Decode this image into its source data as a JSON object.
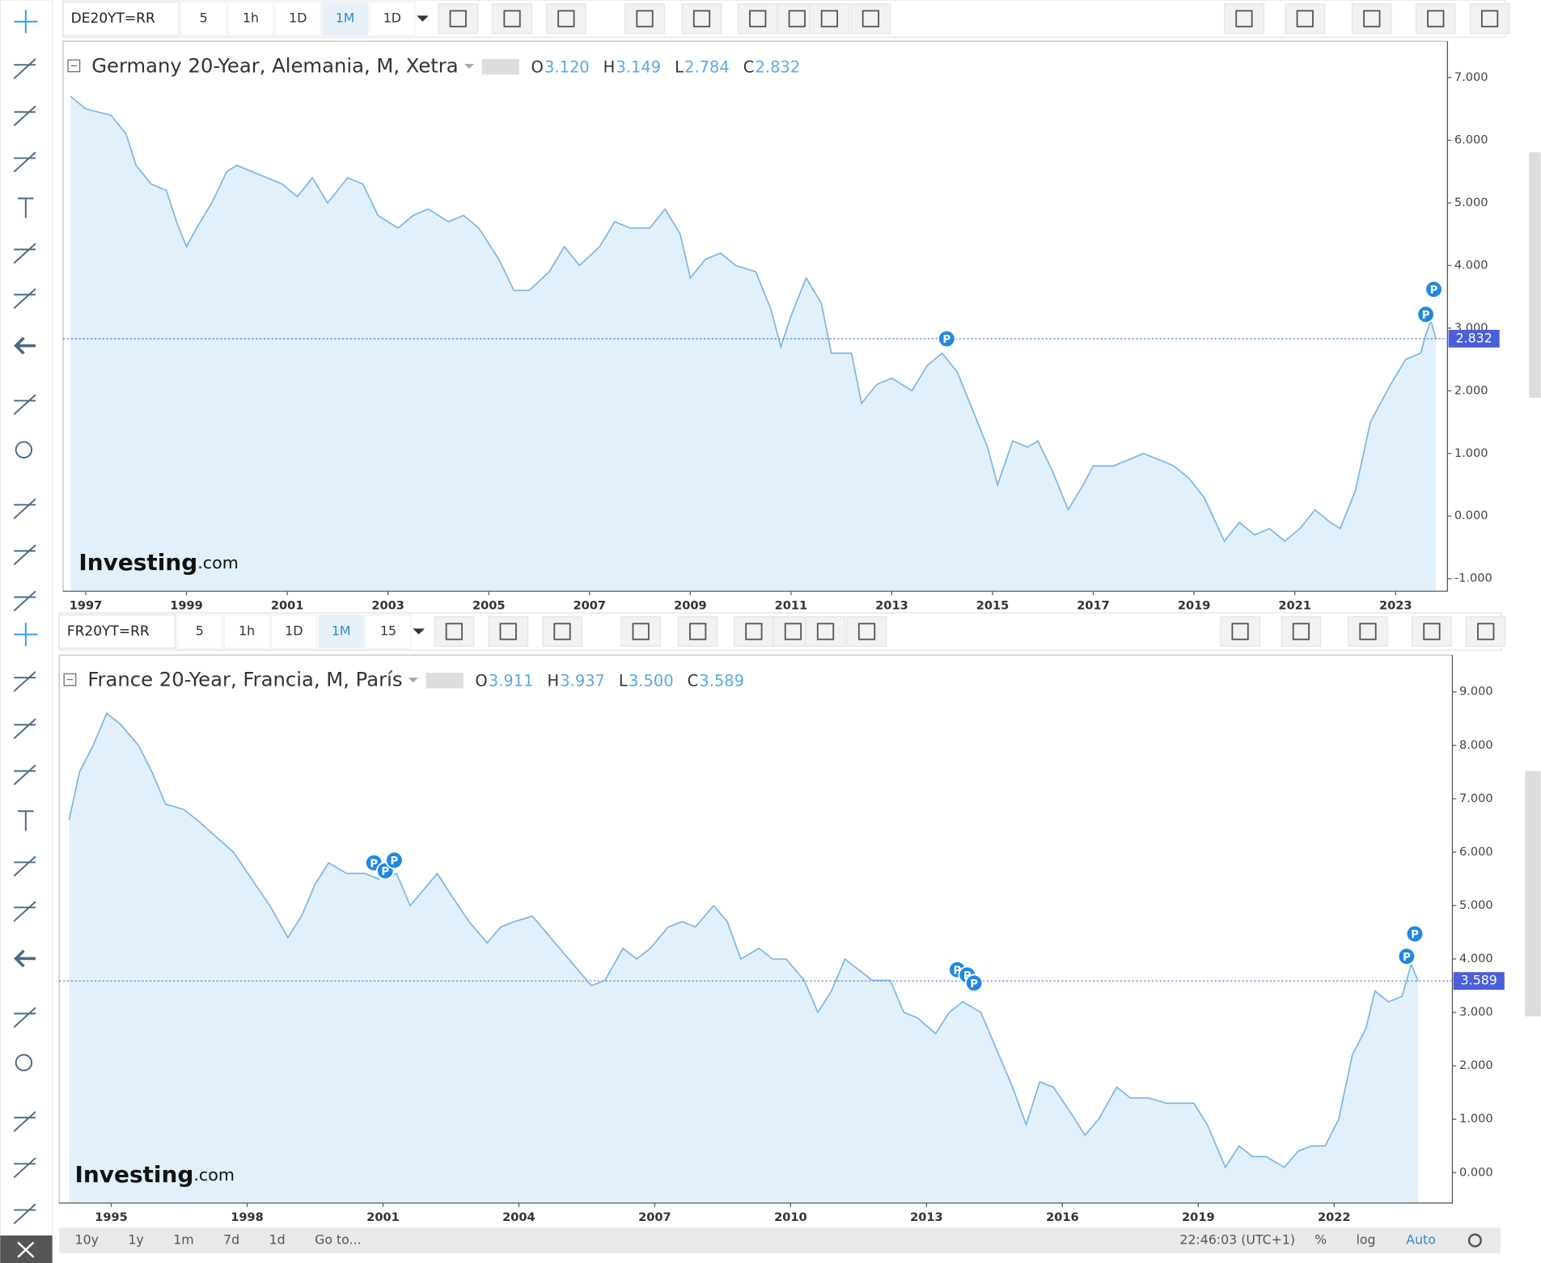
{
  "toolbars": [
    {
      "symbol": "DE20YT=RR",
      "buttons": [
        "5",
        "1h",
        "1D",
        "1M",
        "1D"
      ],
      "active": 3
    },
    {
      "symbol": "FR20YT=RR",
      "buttons": [
        "5",
        "1h",
        "1D",
        "1M",
        "15"
      ],
      "active": 3
    }
  ],
  "watermark": {
    "brand": "Investing",
    "suffix": ".com"
  },
  "bottom_bar": {
    "ranges": [
      "10y",
      "1y",
      "1m",
      "7d",
      "1d",
      "Go to..."
    ],
    "clock": "22:46:03 (UTC+1)",
    "options": [
      "%",
      "log",
      "Auto"
    ]
  },
  "chart_data": [
    {
      "type": "line",
      "title": "Germany 20-Year, Alemania, M, Xetra",
      "ohlc": [
        {
          "label": "O",
          "value": "3.120"
        },
        {
          "label": "H",
          "value": "3.149"
        },
        {
          "label": "L",
          "value": "2.784"
        },
        {
          "label": "C",
          "value": "2.832"
        }
      ],
      "color": "#7cb5e8",
      "fill": "#e1f0fa",
      "x": [
        1996.7,
        1997.0,
        1997.5,
        1997.8,
        1998.0,
        1998.3,
        1998.6,
        1998.8,
        1999.0,
        1999.2,
        1999.5,
        1999.8,
        2000.0,
        2000.3,
        2000.6,
        2000.9,
        2001.2,
        2001.5,
        2001.8,
        2002.2,
        2002.5,
        2002.8,
        2003.2,
        2003.5,
        2003.8,
        2004.2,
        2004.5,
        2004.8,
        2005.2,
        2005.5,
        2005.8,
        2006.2,
        2006.5,
        2006.8,
        2007.2,
        2007.5,
        2007.8,
        2008.2,
        2008.5,
        2008.8,
        2009.0,
        2009.3,
        2009.6,
        2009.9,
        2010.3,
        2010.6,
        2010.8,
        2011.0,
        2011.3,
        2011.6,
        2011.8,
        2012.2,
        2012.4,
        2012.7,
        2013.0,
        2013.4,
        2013.7,
        2014.0,
        2014.3,
        2014.6,
        2014.9,
        2015.1,
        2015.4,
        2015.7,
        2015.9,
        2016.2,
        2016.5,
        2016.8,
        2017.0,
        2017.4,
        2017.7,
        2018.0,
        2018.3,
        2018.6,
        2018.9,
        2019.2,
        2019.6,
        2019.9,
        2020.2,
        2020.5,
        2020.8,
        2021.1,
        2021.4,
        2021.7,
        2021.9,
        2022.2,
        2022.5,
        2022.7,
        2022.9,
        2023.2,
        2023.5,
        2023.6,
        2023.7,
        2023.8
      ],
      "values": [
        6.7,
        6.5,
        6.4,
        6.1,
        5.6,
        5.3,
        5.2,
        4.7,
        4.3,
        4.6,
        5.0,
        5.5,
        5.6,
        5.5,
        5.4,
        5.3,
        5.1,
        5.4,
        5.0,
        5.4,
        5.3,
        4.8,
        4.6,
        4.8,
        4.9,
        4.7,
        4.8,
        4.6,
        4.1,
        3.6,
        3.6,
        3.9,
        4.3,
        4.0,
        4.3,
        4.7,
        4.6,
        4.6,
        4.9,
        4.5,
        3.8,
        4.1,
        4.2,
        4.0,
        3.9,
        3.3,
        2.7,
        3.2,
        3.8,
        3.4,
        2.6,
        2.6,
        1.8,
        2.1,
        2.2,
        2.0,
        2.4,
        2.6,
        2.3,
        1.7,
        1.1,
        0.5,
        1.2,
        1.1,
        1.2,
        0.7,
        0.1,
        0.5,
        0.8,
        0.8,
        0.9,
        1.0,
        0.9,
        0.8,
        0.6,
        0.3,
        -0.4,
        -0.1,
        -0.3,
        -0.2,
        -0.4,
        -0.2,
        0.1,
        -0.1,
        -0.2,
        0.4,
        1.5,
        1.8,
        2.1,
        2.5,
        2.6,
        2.9,
        3.12,
        2.832
      ],
      "xlim": [
        1996.55,
        2024.03
      ],
      "ylim": [
        -1.2,
        7.58
      ],
      "xticks": [
        1997,
        1999,
        2001,
        2003,
        2005,
        2007,
        2009,
        2011,
        2013,
        2015,
        2017,
        2019,
        2021,
        2023
      ],
      "yticks": [
        {
          "value": -1,
          "label": "-1.000"
        },
        {
          "value": 0,
          "label": "0.000"
        },
        {
          "value": 1,
          "label": "1.000"
        },
        {
          "value": 2,
          "label": "2.000"
        },
        {
          "value": 3,
          "label": "3.000"
        },
        {
          "value": 4,
          "label": "4.000"
        },
        {
          "value": 5,
          "label": "5.000"
        },
        {
          "value": 6,
          "label": "6.000"
        },
        {
          "value": 7,
          "label": "7.000"
        }
      ],
      "last": {
        "value": 2.832,
        "label": "2.832"
      },
      "markers": [
        {
          "x": 2014.09,
          "y": 2.83,
          "label": "P"
        },
        {
          "x": 2023.6,
          "y": 3.22,
          "label": "P"
        },
        {
          "x": 2023.76,
          "y": 3.62,
          "label": "P"
        }
      ]
    },
    {
      "type": "line",
      "title": "France 20-Year, Francia, M, París",
      "ohlc": [
        {
          "label": "O",
          "value": "3.911"
        },
        {
          "label": "H",
          "value": "3.937"
        },
        {
          "label": "L",
          "value": "3.500"
        },
        {
          "label": "C",
          "value": "3.589"
        }
      ],
      "color": "#7cb5e8",
      "fill": "#e1f0fa",
      "x": [
        1994.07,
        1994.3,
        1994.6,
        1994.9,
        1995.2,
        1995.6,
        1995.9,
        1996.2,
        1996.6,
        1996.9,
        1997.3,
        1997.7,
        1998.1,
        1998.5,
        1998.9,
        1999.2,
        1999.5,
        1999.8,
        2000.2,
        2000.6,
        2000.9,
        2001.3,
        2001.6,
        2001.9,
        2002.2,
        2002.5,
        2002.9,
        2003.3,
        2003.6,
        2003.9,
        2004.3,
        2004.6,
        2004.9,
        2005.3,
        2005.6,
        2005.9,
        2006.3,
        2006.6,
        2006.9,
        2007.3,
        2007.6,
        2007.9,
        2008.3,
        2008.6,
        2008.9,
        2009.3,
        2009.6,
        2009.9,
        2010.3,
        2010.6,
        2010.9,
        2011.2,
        2011.5,
        2011.8,
        2012.2,
        2012.5,
        2012.8,
        2013.2,
        2013.5,
        2013.8,
        2014.2,
        2014.5,
        2014.9,
        2015.2,
        2015.5,
        2015.8,
        2016.2,
        2016.5,
        2016.8,
        2017.2,
        2017.5,
        2017.9,
        2018.3,
        2018.7,
        2018.9,
        2019.2,
        2019.6,
        2019.9,
        2020.2,
        2020.5,
        2020.9,
        2021.2,
        2021.5,
        2021.8,
        2022.1,
        2022.4,
        2022.7,
        2022.9,
        2023.2,
        2023.5,
        2023.7,
        2023.85
      ],
      "values": [
        6.6,
        7.5,
        8.0,
        8.6,
        8.4,
        8.0,
        7.5,
        6.9,
        6.8,
        6.6,
        6.3,
        6.0,
        5.5,
        5.0,
        4.4,
        4.8,
        5.4,
        5.8,
        5.6,
        5.6,
        5.5,
        5.6,
        5.0,
        5.3,
        5.6,
        5.2,
        4.7,
        4.3,
        4.6,
        4.7,
        4.8,
        4.5,
        4.2,
        3.8,
        3.5,
        3.6,
        4.2,
        4.0,
        4.2,
        4.6,
        4.7,
        4.6,
        5.0,
        4.7,
        4.0,
        4.2,
        4.0,
        4.0,
        3.6,
        3.0,
        3.4,
        4.0,
        3.8,
        3.6,
        3.6,
        3.0,
        2.9,
        2.6,
        3.0,
        3.2,
        3.0,
        2.4,
        1.6,
        0.9,
        1.7,
        1.6,
        1.1,
        0.7,
        1.0,
        1.6,
        1.4,
        1.4,
        1.3,
        1.3,
        1.3,
        0.9,
        0.1,
        0.5,
        0.3,
        0.3,
        0.1,
        0.4,
        0.5,
        0.5,
        1.0,
        2.2,
        2.7,
        3.4,
        3.2,
        3.3,
        3.9,
        3.589
      ],
      "xlim": [
        1993.85,
        2024.61
      ],
      "ylim": [
        -0.57,
        9.69
      ],
      "xticks": [
        1995,
        1998,
        2001,
        2004,
        2007,
        2010,
        2013,
        2016,
        2019,
        2022
      ],
      "yticks": [
        {
          "value": 0,
          "label": "0.000"
        },
        {
          "value": 1,
          "label": "1.000"
        },
        {
          "value": 2,
          "label": "2.000"
        },
        {
          "value": 3,
          "label": "3.000"
        },
        {
          "value": 4,
          "label": "4.000"
        },
        {
          "value": 5,
          "label": "5.000"
        },
        {
          "value": 6,
          "label": "6.000"
        },
        {
          "value": 7,
          "label": "7.000"
        },
        {
          "value": 8,
          "label": "8.000"
        },
        {
          "value": 9,
          "label": "9.000"
        }
      ],
      "last": {
        "value": 3.589,
        "label": "3.589"
      },
      "markers": [
        {
          "x": 2000.8,
          "y": 5.8,
          "label": "P"
        },
        {
          "x": 2001.05,
          "y": 5.65,
          "label": "P"
        },
        {
          "x": 2001.25,
          "y": 5.85,
          "label": "P"
        },
        {
          "x": 2013.68,
          "y": 3.8,
          "label": "P"
        },
        {
          "x": 2013.9,
          "y": 3.7,
          "label": "P"
        },
        {
          "x": 2014.05,
          "y": 3.55,
          "label": "P"
        },
        {
          "x": 2023.6,
          "y": 4.05,
          "label": "P"
        },
        {
          "x": 2023.78,
          "y": 4.47,
          "label": "P"
        }
      ]
    }
  ]
}
